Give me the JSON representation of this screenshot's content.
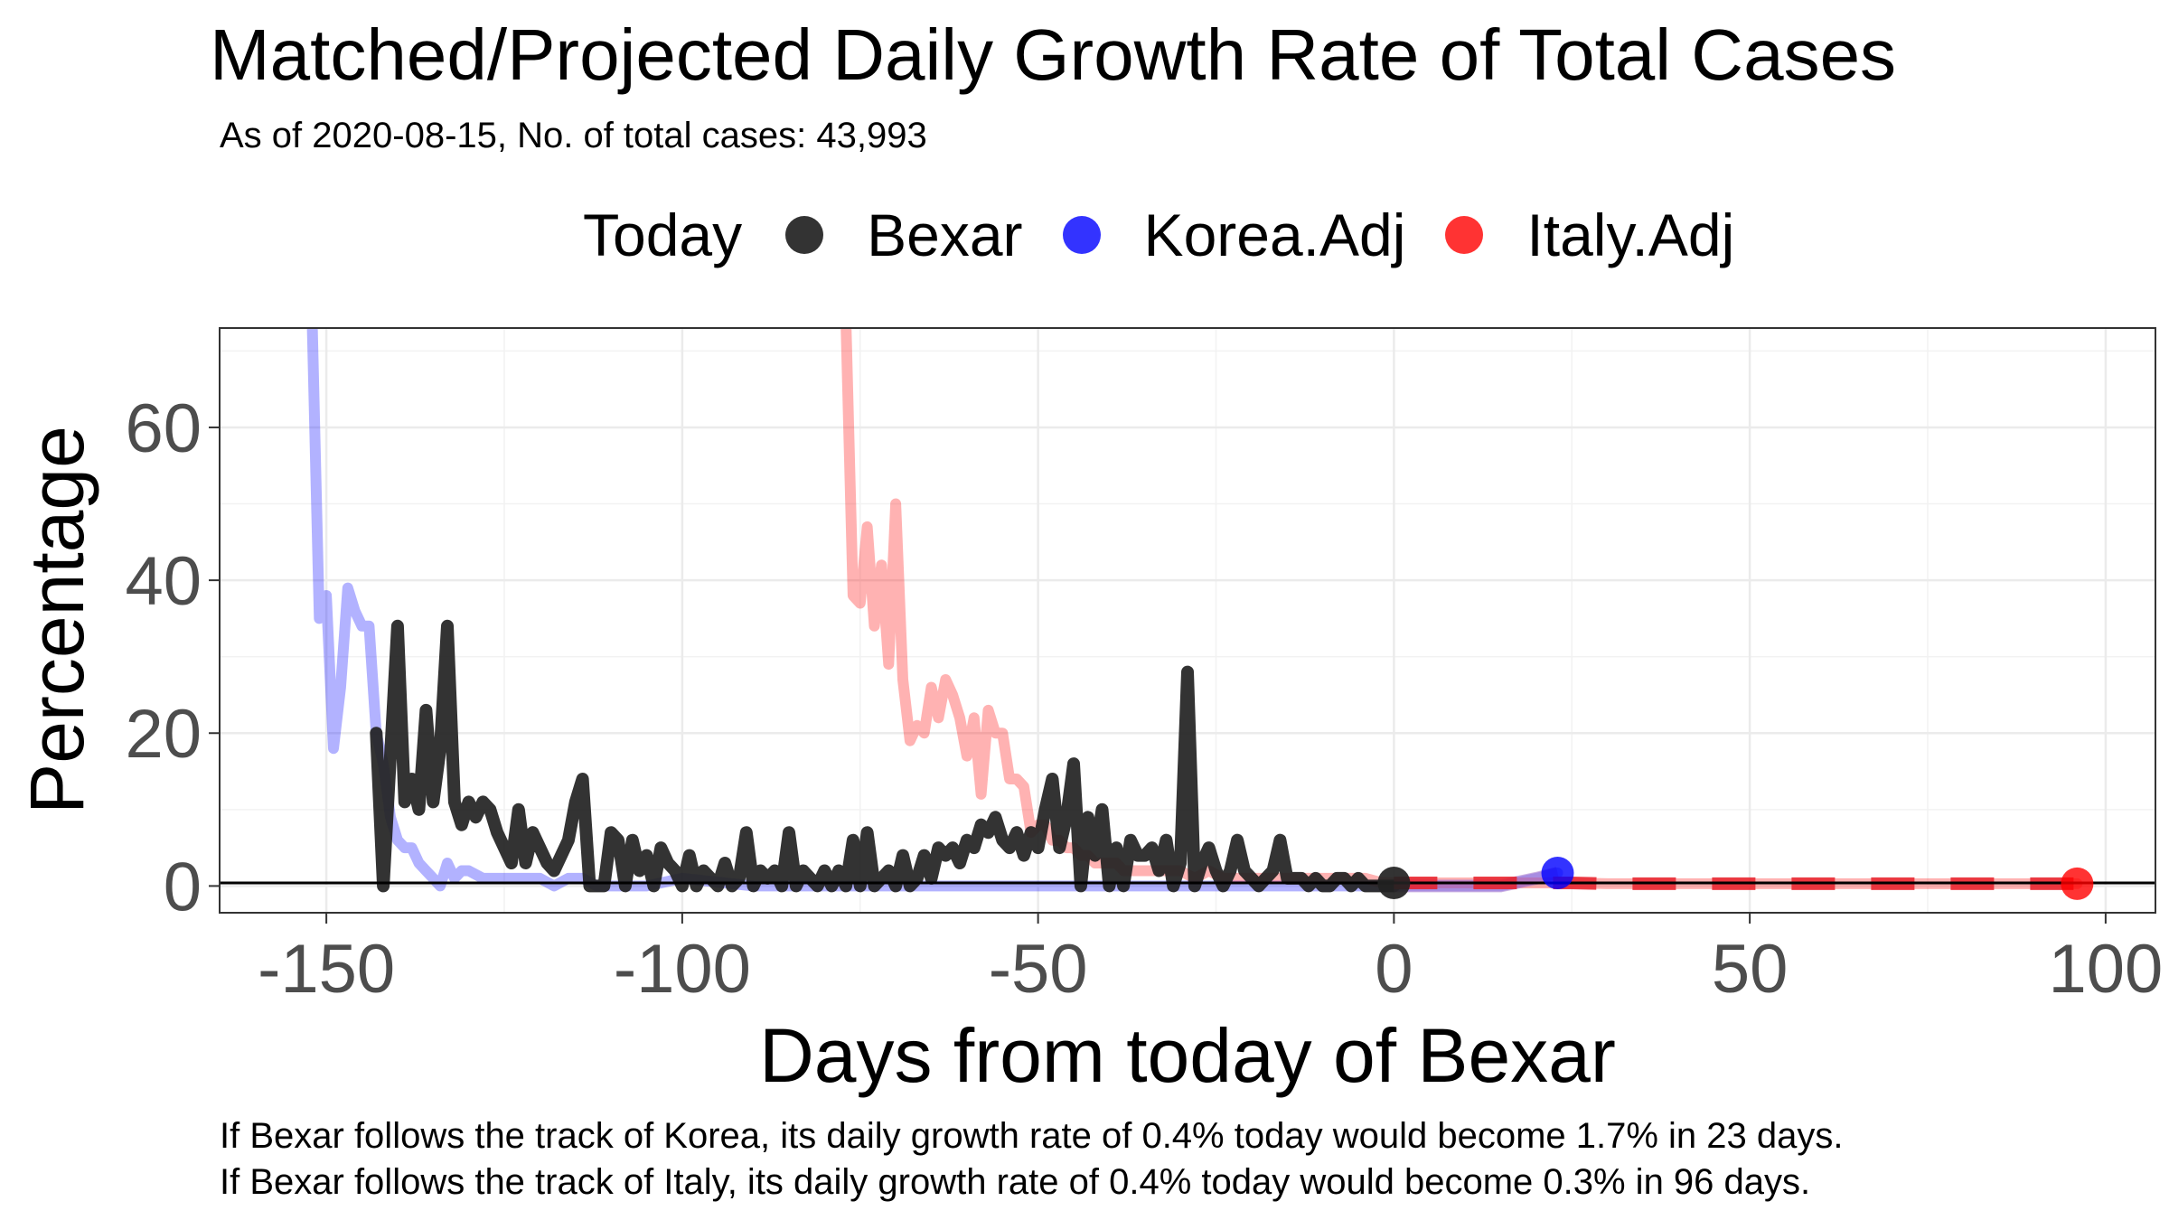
{
  "chart_data": {
    "type": "line",
    "title": "Matched/Projected Daily Growth Rate of Total Cases",
    "subtitle": "As of 2020-08-15, No. of total cases: 43,993",
    "xlabel": "Days from today of Bexar",
    "ylabel": "Percentage",
    "xlim": [
      -165,
      107
    ],
    "ylim": [
      -3.5,
      73
    ],
    "x_ticks": [
      -150,
      -100,
      -50,
      0,
      50,
      100
    ],
    "y_ticks": [
      0,
      20,
      40,
      60
    ],
    "grid": true,
    "legend_title": "Today",
    "legend_position": "top",
    "hline_y": 0.4,
    "series": [
      {
        "name": "Bexar",
        "color": "#222222",
        "x": [
          -143,
          -142,
          -141,
          -140,
          -139,
          -138,
          -137,
          -136,
          -135,
          -134,
          -133,
          -132,
          -131,
          -130,
          -129,
          -128,
          -127,
          -126,
          -125,
          -124,
          -123,
          -122,
          -121,
          -120,
          -119,
          -118,
          -117,
          -116,
          -115,
          -114,
          -113,
          -112,
          -111,
          -110,
          -109,
          -108,
          -107,
          -106,
          -105,
          -104,
          -103,
          -102,
          -101,
          -100,
          -99,
          -98,
          -97,
          -96,
          -95,
          -94,
          -93,
          -92,
          -91,
          -90,
          -89,
          -88,
          -87,
          -86,
          -85,
          -84,
          -83,
          -82,
          -81,
          -80,
          -79,
          -78,
          -77,
          -76,
          -75,
          -74,
          -73,
          -72,
          -71,
          -70,
          -69,
          -68,
          -67,
          -66,
          -65,
          -64,
          -63,
          -62,
          -61,
          -60,
          -59,
          -58,
          -57,
          -56,
          -55,
          -54,
          -53,
          -52,
          -51,
          -50,
          -49,
          -48,
          -47,
          -46,
          -45,
          -44,
          -43,
          -42,
          -41,
          -40,
          -39,
          -38,
          -37,
          -36,
          -35,
          -34,
          -33,
          -32,
          -31,
          -30,
          -29,
          -28,
          -27,
          -26,
          -25,
          -24,
          -23,
          -22,
          -21,
          -20,
          -19,
          -18,
          -17,
          -16,
          -15,
          -14,
          -13,
          -12,
          -11,
          -10,
          -9,
          -8,
          -7,
          -6,
          -5,
          -4,
          -3,
          -2,
          -1,
          0
        ],
        "values": [
          20,
          0,
          17,
          34,
          11,
          14,
          10,
          23,
          11,
          18,
          34,
          11,
          8,
          11,
          9,
          11,
          10,
          7,
          5,
          3,
          10,
          3,
          7,
          5,
          3,
          2,
          4,
          6,
          11,
          14,
          0,
          0,
          0,
          7,
          6,
          0,
          6,
          2,
          4,
          0,
          5,
          3,
          2,
          0,
          4,
          0,
          2,
          1,
          0,
          3,
          0,
          1,
          7,
          0,
          2,
          1,
          2,
          0,
          7,
          0,
          2,
          1,
          0,
          2,
          0,
          2,
          0,
          6,
          0,
          7,
          0,
          1,
          2,
          0,
          4,
          0,
          1,
          4,
          1,
          5,
          4,
          5,
          3,
          6,
          5,
          8,
          7,
          9,
          6,
          5,
          7,
          4,
          7,
          5,
          10,
          14,
          5,
          9,
          16,
          0,
          9,
          4,
          10,
          0,
          5,
          0,
          6,
          4,
          4,
          5,
          2,
          6,
          0,
          3,
          28,
          0,
          3,
          5,
          2,
          0,
          2,
          6,
          2,
          1,
          0,
          1,
          2,
          6,
          1,
          1,
          1,
          0,
          1,
          0,
          0,
          1,
          1,
          0,
          1,
          0,
          0,
          0,
          0,
          0
        ]
      },
      {
        "name": "Korea.Adj",
        "color": "#0000ff",
        "x": [
          -152,
          -151,
          -150,
          -149,
          -148,
          -147,
          -146,
          -145,
          -144,
          -143,
          -142,
          -141,
          -140,
          -139,
          -138,
          -137,
          -136,
          -135,
          -134,
          -133,
          -132,
          -131,
          -130,
          -128,
          -126,
          -124,
          -122,
          -120,
          -118,
          -116,
          -114,
          -112,
          -110,
          -105,
          -100,
          -90,
          -80,
          -70,
          -60,
          -50,
          -40,
          -30,
          -20,
          -10,
          0,
          5,
          10,
          15,
          20,
          23
        ],
        "values": [
          74,
          35,
          38,
          18,
          26,
          39,
          36,
          34,
          34,
          20,
          16,
          9,
          6,
          5,
          5,
          3,
          2,
          1,
          0,
          3,
          1,
          2,
          2,
          1,
          1,
          1,
          1,
          1,
          0,
          1,
          1,
          0,
          0,
          0,
          1,
          0,
          0,
          0,
          0,
          0,
          0,
          0,
          0,
          0,
          0,
          0,
          0,
          0,
          1,
          1.7
        ]
      },
      {
        "name": "Italy.Adj",
        "color": "#ff0000",
        "x": [
          -77,
          -76,
          -75,
          -74,
          -73,
          -72,
          -71,
          -70,
          -69,
          -68,
          -67,
          -66,
          -65,
          -64,
          -63,
          -62,
          -61,
          -60,
          -59,
          -58,
          -57,
          -56,
          -55,
          -54,
          -53,
          -52,
          -51,
          -50,
          -49,
          -48,
          -47,
          -46,
          -45,
          -44,
          -43,
          -42,
          -41,
          -40,
          -39,
          -38,
          -36,
          -34,
          -32,
          -30,
          -28,
          -26,
          -24,
          -22,
          -20,
          -18,
          -16,
          -14,
          -12,
          -10,
          -8,
          -6,
          -4,
          -2,
          0,
          5,
          10,
          15,
          20,
          25,
          30,
          40,
          50,
          60,
          70,
          80,
          90,
          96
        ],
        "values": [
          74,
          38,
          37,
          47,
          34,
          42,
          29,
          50,
          27,
          19,
          21,
          20,
          26,
          22,
          27,
          25,
          22,
          17,
          22,
          12,
          23,
          20,
          20,
          14,
          14,
          13,
          7,
          8,
          8,
          6,
          6,
          5,
          5,
          4,
          4,
          3,
          3,
          3,
          3,
          2,
          2,
          2,
          2,
          2,
          1,
          2,
          1,
          1,
          1,
          1,
          1,
          1,
          1,
          1,
          1,
          1,
          1,
          0.5,
          0.4,
          0.4,
          0.4,
          0.4,
          0.4,
          0.4,
          0.3,
          0.3,
          0.3,
          0.3,
          0.3,
          0.3,
          0.3,
          0.3
        ]
      }
    ],
    "points": [
      {
        "series": "Bexar",
        "x": 0,
        "y": 0.4
      },
      {
        "series": "Korea.Adj",
        "x": 23,
        "y": 1.7
      },
      {
        "series": "Italy.Adj",
        "x": 96,
        "y": 0.3
      }
    ],
    "captions": [
      "If Bexar follows the track of Korea, its daily growth rate of 0.4% today would become 1.7% in 23 days.",
      "If Bexar follows the track of Italy, its daily growth rate of 0.4% today would become 0.3% in 96 days."
    ]
  }
}
